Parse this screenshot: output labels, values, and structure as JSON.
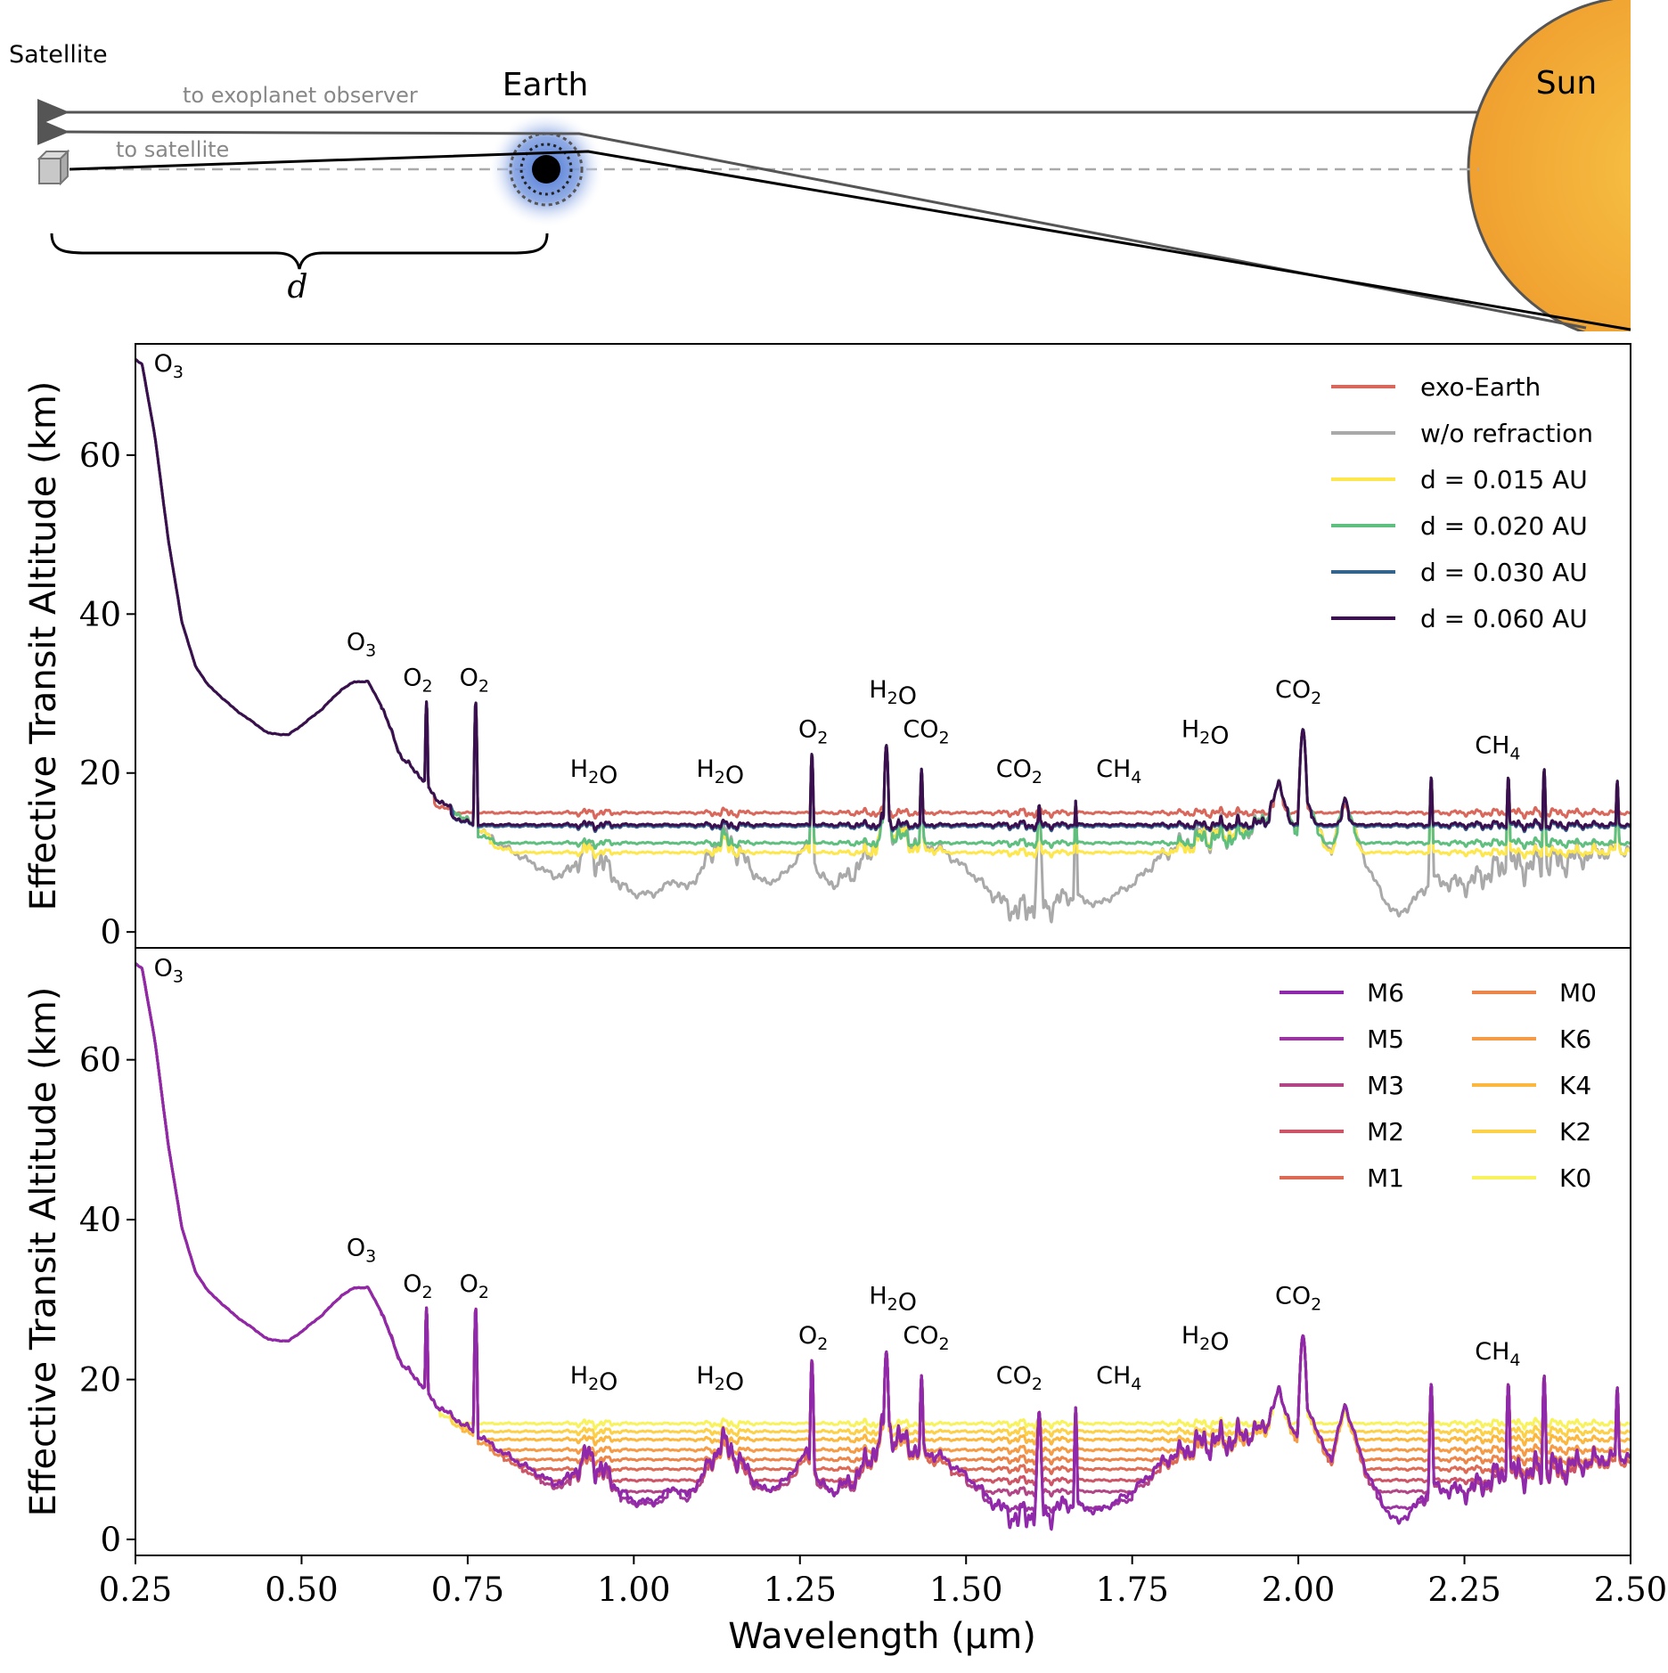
{
  "diagram": {
    "satellite_label": "Satellite",
    "earth_label": "Earth",
    "sun_label": "Sun",
    "ray_exoplanet_label": "to exoplanet observer",
    "ray_satellite_label": "to satellite",
    "distance_label": "d",
    "colors": {
      "sun_inner": "#f7c345",
      "sun_outer": "#f0a030",
      "earth_glow": "#4a76d6",
      "ray_gray": "#666666",
      "ray_black": "#000000"
    }
  },
  "chart_data": [
    {
      "type": "line",
      "panel": "top",
      "xlabel": "Wavelength (μm)",
      "ylabel": "Effective Transit Altitude (km)",
      "xlim": [
        0.25,
        2.5
      ],
      "ylim": [
        -2,
        74
      ],
      "x_ticks": [
        0.25,
        0.5,
        0.75,
        1.0,
        1.25,
        1.5,
        1.75,
        2.0,
        2.25,
        2.5
      ],
      "x_tick_labels": [
        "0.25",
        "0.50",
        "0.75",
        "1.00",
        "1.25",
        "1.50",
        "1.75",
        "2.00",
        "2.25",
        "2.50"
      ],
      "y_ticks": [
        0,
        20,
        40,
        60
      ],
      "y_tick_labels": [
        "0",
        "20",
        "40",
        "60"
      ],
      "legend_position": "top-right",
      "series": [
        {
          "name": "exo-Earth",
          "color": "#d9675b",
          "mode": "floor",
          "floor": 15.0
        },
        {
          "name": "w/o refraction",
          "color": "#a9a9a9",
          "mode": "full",
          "floor": 0
        },
        {
          "name": "d = 0.015 AU",
          "color": "#fde74c",
          "mode": "floor",
          "floor": 10.0
        },
        {
          "name": "d = 0.020 AU",
          "color": "#5fbf7e",
          "mode": "floor",
          "floor": 11.2
        },
        {
          "name": "d = 0.030 AU",
          "color": "#32648e",
          "mode": "floor",
          "floor": 13.3
        },
        {
          "name": "d = 0.060 AU",
          "color": "#3b0f4f",
          "mode": "floor",
          "floor": 13.5
        }
      ],
      "legend": [
        {
          "label": "exo-Earth",
          "color": "#d9675b"
        },
        {
          "label": "w/o refraction",
          "color": "#a9a9a9"
        },
        {
          "label": "d = 0.015 AU",
          "color": "#fde74c"
        },
        {
          "label": "d = 0.020 AU",
          "color": "#5fbf7e"
        },
        {
          "label": "d = 0.030 AU",
          "color": "#32648e"
        },
        {
          "label": "d = 0.060 AU",
          "color": "#3b0f4f"
        }
      ],
      "annotations": [
        {
          "text": "O3",
          "x": 0.3,
          "y": 70.5
        },
        {
          "text": "O3",
          "x": 0.59,
          "y": 35.5
        },
        {
          "text": "O2",
          "x": 0.675,
          "y": 31.0
        },
        {
          "text": "O2",
          "x": 0.76,
          "y": 31.0
        },
        {
          "text": "H2O",
          "x": 0.94,
          "y": 19.5
        },
        {
          "text": "H2O",
          "x": 1.13,
          "y": 19.5
        },
        {
          "text": "O2",
          "x": 1.27,
          "y": 24.5
        },
        {
          "text": "H2O",
          "x": 1.39,
          "y": 29.5
        },
        {
          "text": "CO2",
          "x": 1.44,
          "y": 24.5
        },
        {
          "text": "CO2",
          "x": 1.58,
          "y": 19.5
        },
        {
          "text": "CH4",
          "x": 1.73,
          "y": 19.5
        },
        {
          "text": "H2O",
          "x": 1.86,
          "y": 24.5
        },
        {
          "text": "CO2",
          "x": 2.0,
          "y": 29.5
        },
        {
          "text": "CH4",
          "x": 2.3,
          "y": 22.5
        }
      ],
      "base_spectrum_w_o_refraction": {
        "x": [
          0.25,
          0.26,
          0.28,
          0.3,
          0.32,
          0.34,
          0.36,
          0.4,
          0.45,
          0.48,
          0.5,
          0.53,
          0.56,
          0.58,
          0.6,
          0.62,
          0.65,
          0.68,
          0.7,
          0.75,
          0.8,
          0.85,
          0.88,
          0.9,
          0.93,
          0.95,
          0.98,
          1.0,
          1.03,
          1.06,
          1.08,
          1.1,
          1.13,
          1.15,
          1.18,
          1.2,
          1.23,
          1.26,
          1.28,
          1.3,
          1.33,
          1.35,
          1.38,
          1.4,
          1.43,
          1.46,
          1.5,
          1.55,
          1.58,
          1.6,
          1.62,
          1.65,
          1.7,
          1.75,
          1.8,
          1.85,
          1.9,
          1.95,
          1.97,
          2.0,
          2.01,
          2.03,
          2.05,
          2.07,
          2.1,
          2.13,
          2.15,
          2.18,
          2.2,
          2.25,
          2.3,
          2.35,
          2.4,
          2.45,
          2.5
        ],
        "y": [
          72.0,
          71.5,
          62.0,
          49.0,
          39.0,
          33.5,
          31.0,
          28.0,
          25.0,
          24.8,
          26.0,
          28.0,
          30.5,
          31.5,
          31.5,
          28.5,
          22.0,
          19.5,
          17.0,
          14.0,
          11.0,
          8.5,
          7.0,
          7.5,
          10.5,
          9.0,
          6.0,
          4.8,
          4.8,
          6.5,
          5.5,
          7.5,
          12.0,
          11.0,
          7.5,
          6.0,
          7.5,
          11.0,
          7.0,
          6.0,
          7.5,
          9.5,
          14.0,
          12.5,
          11.0,
          10.5,
          8.0,
          4.0,
          2.5,
          3.5,
          3.0,
          4.5,
          3.5,
          6.0,
          10.0,
          12.0,
          12.5,
          14.0,
          18.5,
          12.0,
          17.5,
          13.0,
          10.0,
          17.0,
          9.0,
          4.0,
          2.0,
          4.5,
          6.5,
          6.0,
          8.0,
          8.5,
          9.0,
          10.0,
          10.5
        ]
      }
    },
    {
      "type": "line",
      "panel": "bottom",
      "xlabel": "Wavelength (μm)",
      "ylabel": "Effective Transit Altitude (km)",
      "xlim": [
        0.25,
        2.5
      ],
      "ylim": [
        -2,
        74
      ],
      "x_ticks": [
        0.25,
        0.5,
        0.75,
        1.0,
        1.25,
        1.5,
        1.75,
        2.0,
        2.25,
        2.5
      ],
      "x_tick_labels": [
        "0.25",
        "0.50",
        "0.75",
        "1.00",
        "1.25",
        "1.50",
        "1.75",
        "2.00",
        "2.25",
        "2.50"
      ],
      "y_ticks": [
        0,
        20,
        40,
        60
      ],
      "y_tick_labels": [
        "0",
        "20",
        "40",
        "60"
      ],
      "legend_position": "top-right",
      "series": [
        {
          "name": "K0",
          "color": "#f8f35d",
          "floor": 14.5
        },
        {
          "name": "K2",
          "color": "#fcd147",
          "floor": 13.5
        },
        {
          "name": "K4",
          "color": "#fbb73e",
          "floor": 12.5
        },
        {
          "name": "K6",
          "color": "#f69b45",
          "floor": 11.2
        },
        {
          "name": "M0",
          "color": "#ec8549",
          "floor": 10.0
        },
        {
          "name": "M1",
          "color": "#dd6a55",
          "floor": 8.8
        },
        {
          "name": "M2",
          "color": "#cc5466",
          "floor": 7.4
        },
        {
          "name": "M3",
          "color": "#b14585",
          "floor": 6.0
        },
        {
          "name": "M5",
          "color": "#9b34a0",
          "floor": 4.0
        },
        {
          "name": "M6",
          "color": "#8f28aa",
          "floor": 0
        }
      ],
      "legend": [
        {
          "label": "M6",
          "color": "#8f28aa"
        },
        {
          "label": "M5",
          "color": "#9b34a0"
        },
        {
          "label": "M3",
          "color": "#b14585"
        },
        {
          "label": "M2",
          "color": "#cc5466"
        },
        {
          "label": "M1",
          "color": "#dd6a55"
        },
        {
          "label": "M0",
          "color": "#ec8549"
        },
        {
          "label": "K6",
          "color": "#f69b45"
        },
        {
          "label": "K4",
          "color": "#fbb73e"
        },
        {
          "label": "K2",
          "color": "#fcd147"
        },
        {
          "label": "K0",
          "color": "#f8f35d"
        }
      ],
      "annotations": [
        {
          "text": "O3",
          "x": 0.3,
          "y": 70.5
        },
        {
          "text": "O3",
          "x": 0.59,
          "y": 35.5
        },
        {
          "text": "O2",
          "x": 0.675,
          "y": 31.0
        },
        {
          "text": "O2",
          "x": 0.76,
          "y": 31.0
        },
        {
          "text": "H2O",
          "x": 0.94,
          "y": 19.5
        },
        {
          "text": "H2O",
          "x": 1.13,
          "y": 19.5
        },
        {
          "text": "O2",
          "x": 1.27,
          "y": 24.5
        },
        {
          "text": "H2O",
          "x": 1.39,
          "y": 29.5
        },
        {
          "text": "CO2",
          "x": 1.44,
          "y": 24.5
        },
        {
          "text": "CO2",
          "x": 1.58,
          "y": 19.5
        },
        {
          "text": "CH4",
          "x": 1.73,
          "y": 19.5
        },
        {
          "text": "H2O",
          "x": 1.86,
          "y": 24.5
        },
        {
          "text": "CO2",
          "x": 2.0,
          "y": 29.5
        },
        {
          "text": "CH4",
          "x": 2.3,
          "y": 22.5
        }
      ]
    }
  ]
}
